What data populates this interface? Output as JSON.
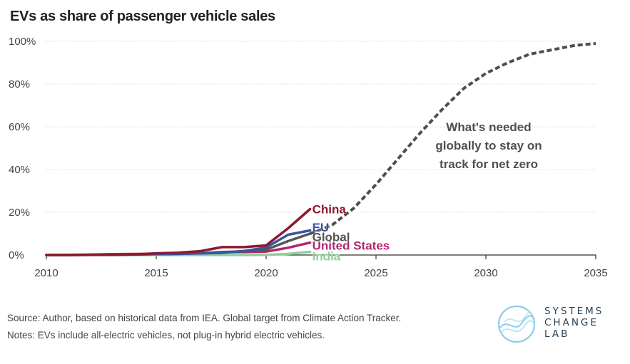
{
  "title": "EVs as share of passenger vehicle sales",
  "source": "Source: Author, based on historical data from IEA. Global target from Climate Action Tracker.",
  "notes": "Notes: EVs include all-electric vehicles, not plug-in hybrid electric vehicles.",
  "logo": {
    "line1": "SYSTEMS",
    "line2": "CHANGE",
    "line3": "LAB"
  },
  "colors": {
    "china": "#8b1a2e",
    "eu": "#3b54a0",
    "global": "#555555",
    "united_states": "#b5256f",
    "india": "#8fcf9a",
    "target": "#4f4f4f",
    "logo": "#2a4257"
  },
  "chart_data": {
    "type": "line",
    "title": "EVs as share of passenger vehicle sales",
    "xlabel": "",
    "ylabel": "",
    "xlim": [
      2010,
      2035
    ],
    "ylim": [
      0,
      100
    ],
    "x_ticks": [
      "2010",
      "2015",
      "2020",
      "2025",
      "2030",
      "2035"
    ],
    "y_ticks": [
      "0%",
      "20%",
      "40%",
      "60%",
      "80%",
      "100%"
    ],
    "grid": true,
    "series": [
      {
        "name": "China",
        "label": "China",
        "color_key": "china",
        "x": [
          2010,
          2011,
          2012,
          2013,
          2014,
          2015,
          2016,
          2017,
          2018,
          2019,
          2020,
          2021,
          2022
        ],
        "y": [
          0,
          0,
          0.1,
          0.1,
          0.3,
          0.8,
          1.1,
          1.8,
          3.7,
          3.7,
          4.5,
          12.5,
          21.5
        ]
      },
      {
        "name": "EU",
        "label": "EU",
        "color_key": "eu",
        "x": [
          2010,
          2011,
          2012,
          2013,
          2014,
          2015,
          2016,
          2017,
          2018,
          2019,
          2020,
          2021,
          2022
        ],
        "y": [
          0,
          0,
          0.1,
          0.2,
          0.3,
          0.4,
          0.6,
          0.8,
          1.0,
          1.9,
          3.5,
          9.5,
          11.5
        ]
      },
      {
        "name": "Global",
        "label": "Global",
        "color_key": "global",
        "x": [
          2010,
          2011,
          2012,
          2013,
          2014,
          2015,
          2016,
          2017,
          2018,
          2019,
          2020,
          2021,
          2022
        ],
        "y": [
          0,
          0,
          0.1,
          0.1,
          0.2,
          0.4,
          0.5,
          0.8,
          1.4,
          1.7,
          2.5,
          6.5,
          10
        ]
      },
      {
        "name": "United States",
        "label": "United States",
        "color_key": "united_states",
        "x": [
          2010,
          2011,
          2012,
          2013,
          2014,
          2015,
          2016,
          2017,
          2018,
          2019,
          2020,
          2021,
          2022
        ],
        "y": [
          0,
          0.1,
          0.2,
          0.4,
          0.5,
          0.5,
          0.6,
          0.8,
          1.3,
          1.4,
          1.6,
          3.4,
          5.8
        ]
      },
      {
        "name": "India",
        "label": "India",
        "color_key": "india",
        "x": [
          2010,
          2011,
          2012,
          2013,
          2014,
          2015,
          2016,
          2017,
          2018,
          2019,
          2020,
          2021,
          2022
        ],
        "y": [
          0,
          0,
          0,
          0,
          0,
          0,
          0,
          0,
          0,
          0,
          0.1,
          0.5,
          1.5
        ]
      },
      {
        "name": "What's needed globally to stay on track for net zero",
        "color_key": "target",
        "dashed": true,
        "label_lines": [
          "What's needed",
          "globally to stay on",
          "track for net zero"
        ],
        "x": [
          2022,
          2023,
          2024,
          2025,
          2026,
          2027,
          2028,
          2029,
          2030,
          2031,
          2032,
          2033,
          2034,
          2035
        ],
        "y": [
          10,
          14,
          22,
          33,
          45,
          57,
          68,
          78,
          85,
          90,
          94,
          96,
          98,
          99
        ]
      }
    ]
  }
}
